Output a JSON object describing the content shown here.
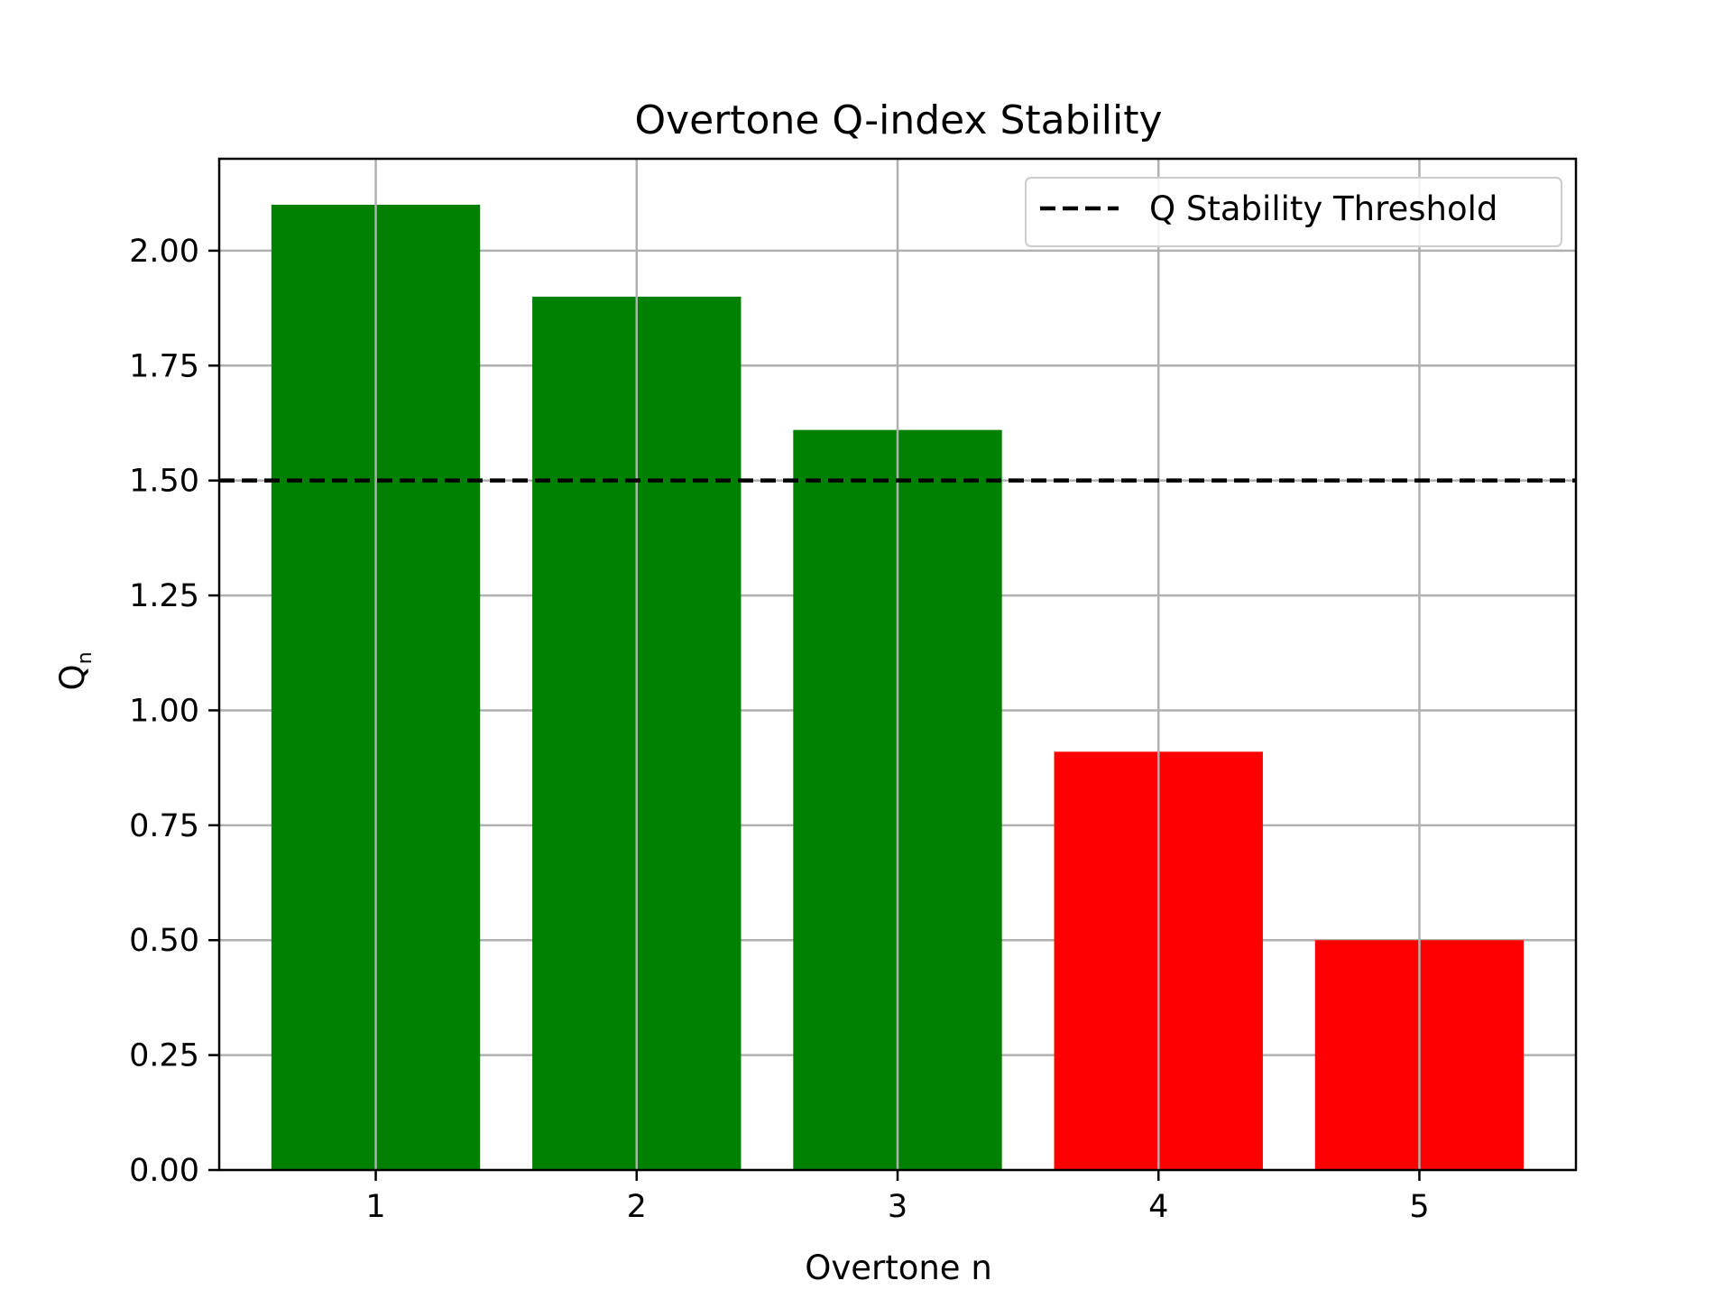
{
  "chart_data": {
    "type": "bar",
    "title": "Overtone Q-index Stability",
    "xlabel": "Overtone n",
    "ylabel": "Q",
    "ylabel_subscript": "n",
    "categories": [
      "1",
      "2",
      "3",
      "4",
      "5"
    ],
    "values": [
      2.1,
      1.9,
      1.61,
      0.91,
      0.5
    ],
    "bar_colors": [
      "#008000",
      "#008000",
      "#008000",
      "#ff0000",
      "#ff0000"
    ],
    "ylim": [
      0,
      2.2
    ],
    "yticks": [
      0.0,
      0.25,
      0.5,
      0.75,
      1.0,
      1.25,
      1.5,
      1.75,
      2.0
    ],
    "ytick_labels": [
      "0.00",
      "0.25",
      "0.50",
      "0.75",
      "1.00",
      "1.25",
      "1.50",
      "1.75",
      "2.00"
    ],
    "threshold": {
      "value": 1.5,
      "label": "Q Stability Threshold",
      "style": "dashed",
      "color": "#000000"
    },
    "grid": true,
    "legend": {
      "position": "top-right"
    }
  }
}
